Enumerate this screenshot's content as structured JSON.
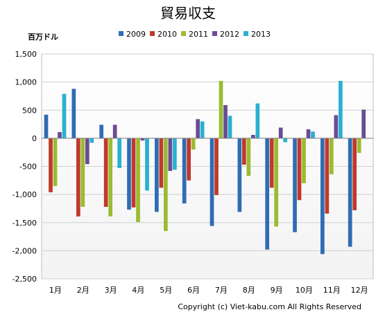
{
  "chart_data": {
    "type": "bar",
    "title": "貿易収支",
    "ylabel": "百万ドル",
    "categories": [
      "1月",
      "2月",
      "3月",
      "4月",
      "5月",
      "6月",
      "7月",
      "8月",
      "9月",
      "10月",
      "11月",
      "12月"
    ],
    "ylim": [
      -2500,
      1500
    ],
    "yticks": [
      1500,
      1000,
      500,
      0,
      -500,
      -1000,
      -1500,
      -2000,
      -2500
    ],
    "ytick_labels": [
      "1,500",
      "1,000",
      "500",
      "0",
      "-500",
      "-1,000",
      "-1,500",
      "-2,000",
      "-2,500"
    ],
    "grid": true,
    "legend_position": "top",
    "series": [
      {
        "name": "2009",
        "color": "#2e6db4",
        "values": [
          420,
          880,
          240,
          -1270,
          -1310,
          -1160,
          -1560,
          -1310,
          -1980,
          -1670,
          -2060,
          -1930
        ]
      },
      {
        "name": "2010",
        "color": "#c0392b",
        "values": [
          -960,
          -1390,
          -1220,
          -1230,
          -880,
          -750,
          -1010,
          -470,
          -880,
          -1100,
          -1340,
          -1280
        ]
      },
      {
        "name": "2011",
        "color": "#9bbb32",
        "values": [
          -850,
          -1220,
          -1390,
          -1490,
          -1650,
          -200,
          1020,
          -670,
          -1570,
          -800,
          -640,
          -260
        ]
      },
      {
        "name": "2012",
        "color": "#6a4c93",
        "values": [
          110,
          -460,
          240,
          -40,
          -580,
          340,
          590,
          60,
          190,
          160,
          410,
          510
        ]
      },
      {
        "name": "2013",
        "color": "#2ab0d1",
        "values": [
          790,
          -80,
          -530,
          -930,
          -560,
          300,
          400,
          620,
          -70,
          120,
          1020,
          null
        ]
      }
    ]
  },
  "footer": "Copyright (c) Viet-kabu.com All Rights Reserved"
}
